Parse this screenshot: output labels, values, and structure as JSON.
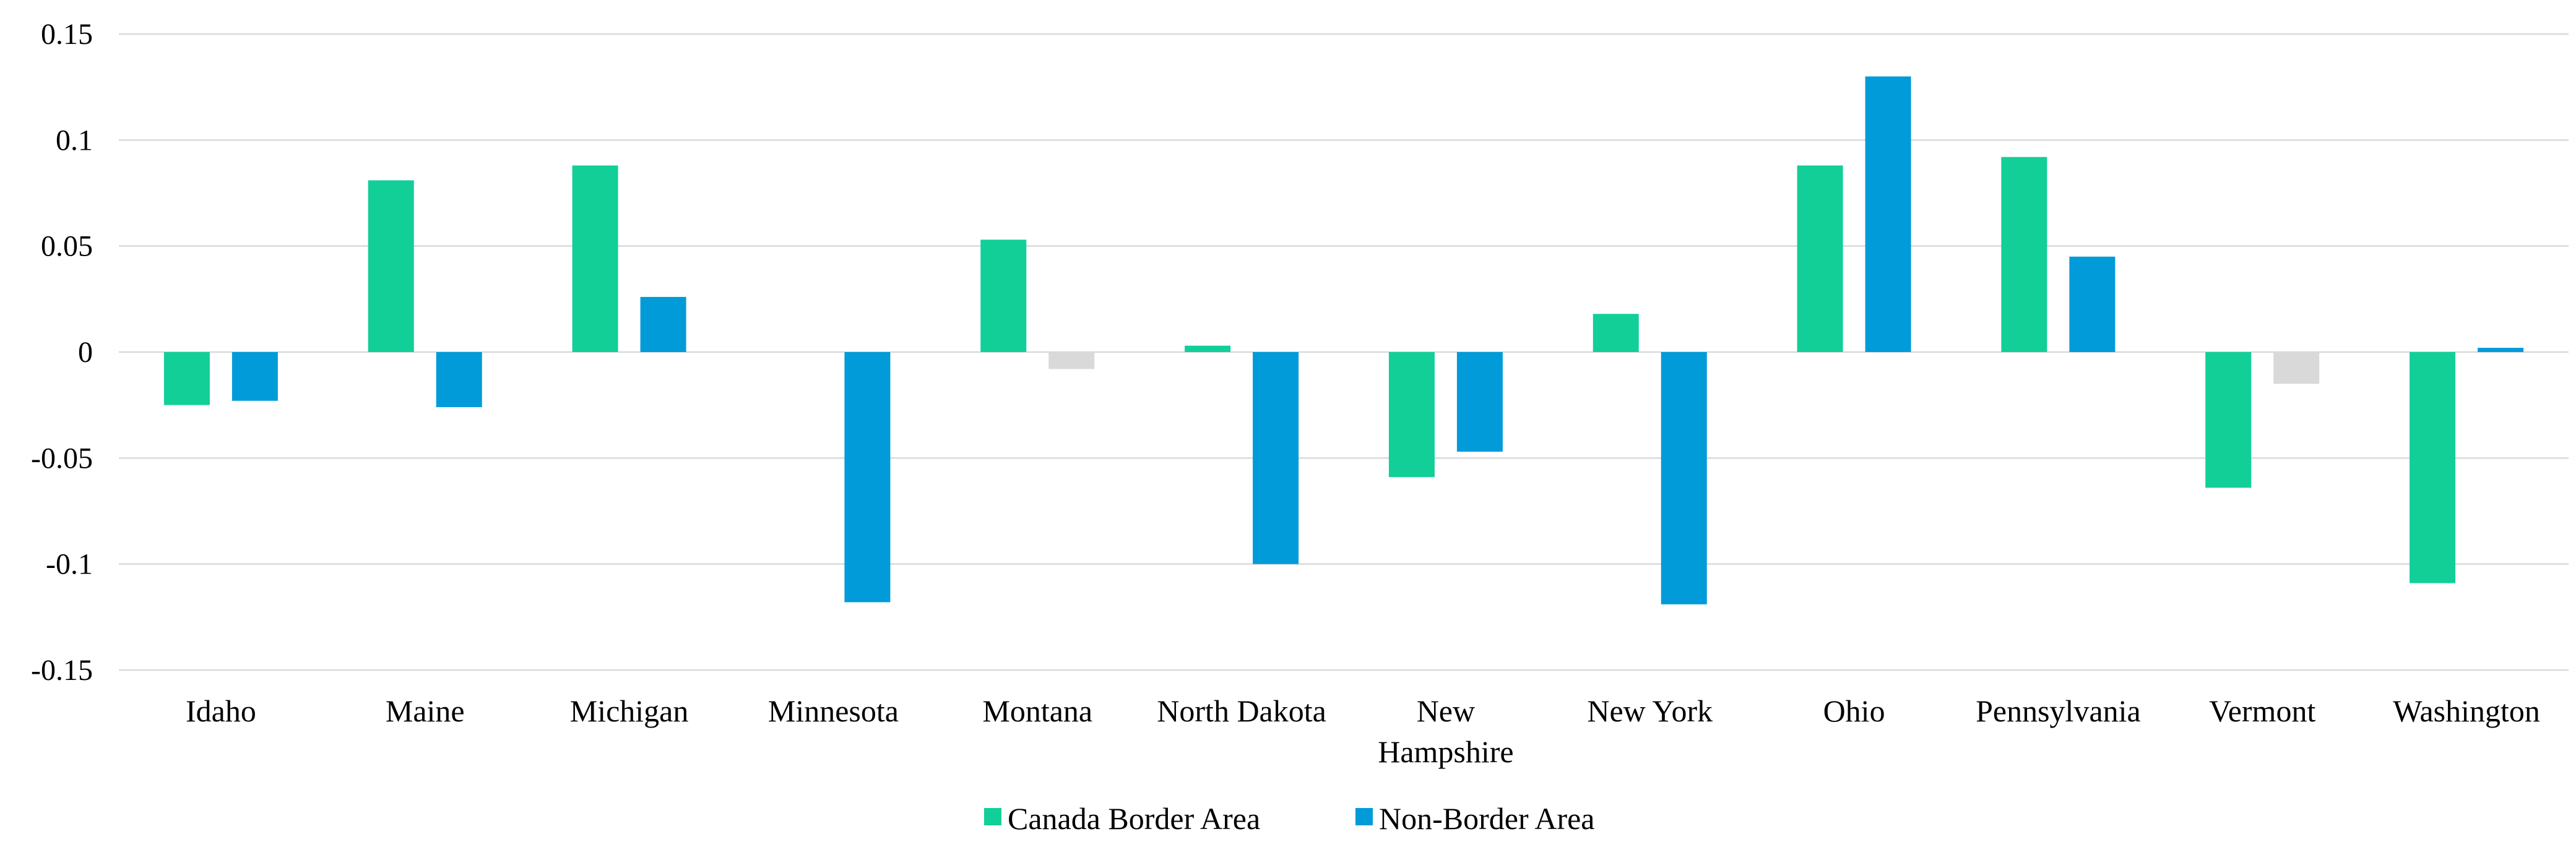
{
  "chart_data": {
    "type": "bar",
    "title": "",
    "xlabel": "",
    "ylabel": "",
    "ylim": [
      -0.15,
      0.15
    ],
    "yticks": [
      0.15,
      0.1,
      0.05,
      0,
      -0.05,
      -0.1,
      -0.15
    ],
    "ytick_labels": [
      "0.15",
      "0.1",
      "0.05",
      "0",
      "-0.05",
      "-0.1",
      "-0.15"
    ],
    "grid": true,
    "legend_position": "bottom-center",
    "categories": [
      [
        "Idaho"
      ],
      [
        "Maine"
      ],
      [
        "Michigan"
      ],
      [
        "Minnesota"
      ],
      [
        "Montana"
      ],
      [
        "North Dakota"
      ],
      [
        "New",
        "Hampshire"
      ],
      [
        "New York"
      ],
      [
        "Ohio"
      ],
      [
        "Pennsylvania"
      ],
      [
        "Vermont"
      ],
      [
        "Washington"
      ]
    ],
    "series": [
      {
        "name": "Canada Border Area",
        "color": "#12cf98",
        "values": [
          -0.025,
          0.081,
          0.088,
          0,
          0.053,
          0.003,
          -0.059,
          0.018,
          0.088,
          0.092,
          -0.064,
          -0.109
        ],
        "bar_colors": [
          "#12cf98",
          "#12cf98",
          "#12cf98",
          "#12cf98",
          "#12cf98",
          "#12cf98",
          "#12cf98",
          "#12cf98",
          "#12cf98",
          "#12cf98",
          "#12cf98",
          "#12cf98"
        ]
      },
      {
        "name": "Non-Border Area",
        "color": "#009bd8",
        "values": [
          -0.023,
          -0.026,
          0.026,
          -0.118,
          -0.008,
          -0.1,
          -0.047,
          -0.119,
          0.13,
          0.045,
          -0.015,
          0.002
        ],
        "bar_colors": [
          "#009bd8",
          "#009bd8",
          "#009bd8",
          "#009bd8",
          "#d9d9d9",
          "#009bd8",
          "#009bd8",
          "#009bd8",
          "#009bd8",
          "#009bd8",
          "#d9d9d9",
          "#009bd8"
        ]
      }
    ]
  }
}
